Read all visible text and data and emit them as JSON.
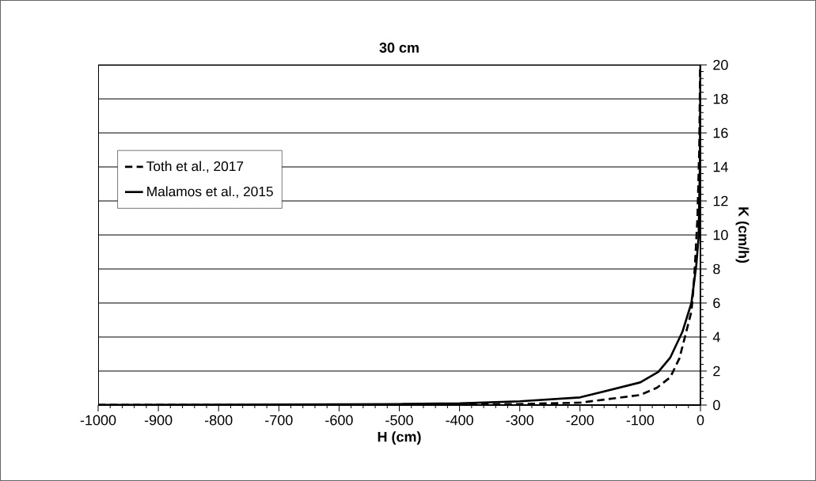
{
  "chart_data": {
    "type": "line",
    "title": "30 cm",
    "xlabel": "H (cm)",
    "ylabel": "K (cm/h)",
    "xlim": [
      -1000,
      0
    ],
    "ylim": [
      0,
      20
    ],
    "xticks": [
      -1000,
      -900,
      -800,
      -700,
      -600,
      -500,
      -400,
      -300,
      -200,
      -100,
      0
    ],
    "yticks": [
      0,
      2,
      4,
      6,
      8,
      10,
      12,
      14,
      16,
      18,
      20
    ],
    "grid": "y",
    "legend": "left",
    "marker": "none",
    "series": [
      {
        "name": "Toth et al., 2017",
        "color": "#000000",
        "line_style": "dashed",
        "x": [
          -1000,
          -800,
          -600,
          -500,
          -400,
          -300,
          -200,
          -100,
          -72,
          -50,
          -35,
          -26,
          -15,
          -11.5,
          -9,
          -5,
          -2,
          -0.5
        ],
        "values": [
          0.01,
          0.01,
          0.02,
          0.02,
          0.03,
          0.06,
          0.14,
          0.59,
          1.02,
          1.64,
          2.74,
          3.97,
          5.5,
          6.9,
          8.3,
          11,
          15,
          20
        ]
      },
      {
        "name": "Malamos et al., 2015",
        "color": "#000000",
        "line_style": "solid",
        "x": [
          -1000,
          -800,
          -600,
          -500,
          -400,
          -300,
          -200,
          -100,
          -70,
          -50,
          -30,
          -15,
          -7,
          -3,
          -1,
          0
        ],
        "values": [
          0.01,
          0.02,
          0.04,
          0.06,
          0.1,
          0.22,
          0.45,
          1.33,
          1.95,
          2.8,
          4.3,
          6.0,
          8.2,
          9.9,
          14,
          20
        ]
      }
    ]
  }
}
